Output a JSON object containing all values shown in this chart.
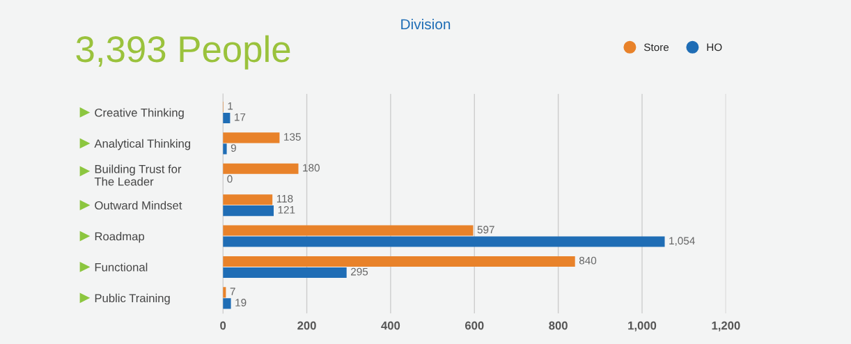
{
  "chart_data": {
    "type": "bar",
    "orientation": "horizontal",
    "title": "Division",
    "subtitle": "3,393 People",
    "categories": [
      "Creative Thinking",
      "Analytical Thinking",
      "Building Trust for\nThe Leader",
      "Outward Mindset",
      "Roadmap",
      "Functional",
      "Public Training"
    ],
    "series": [
      {
        "name": "Store",
        "color": "#e8822a",
        "values": [
          1,
          135,
          180,
          118,
          597,
          840,
          7
        ],
        "value_labels": [
          "1",
          "135",
          "180",
          "118",
          "597",
          "840",
          "7"
        ]
      },
      {
        "name": "HO",
        "color": "#1f6db5",
        "values": [
          17,
          9,
          0,
          121,
          1054,
          295,
          19
        ],
        "value_labels": [
          "17",
          "9",
          "0",
          "121",
          "1,054",
          "295",
          "19"
        ]
      }
    ],
    "xlim": [
      0,
      1200
    ],
    "xticks": [
      {
        "value": 0,
        "label": "0"
      },
      {
        "value": 200,
        "label": "200"
      },
      {
        "value": 400,
        "label": "400"
      },
      {
        "value": 600,
        "label": "600"
      },
      {
        "value": 800,
        "label": "800"
      },
      {
        "value": 1000,
        "label": "1,000"
      },
      {
        "value": 1200,
        "label": "1,200"
      }
    ],
    "grid": "x",
    "legend": "top right"
  }
}
